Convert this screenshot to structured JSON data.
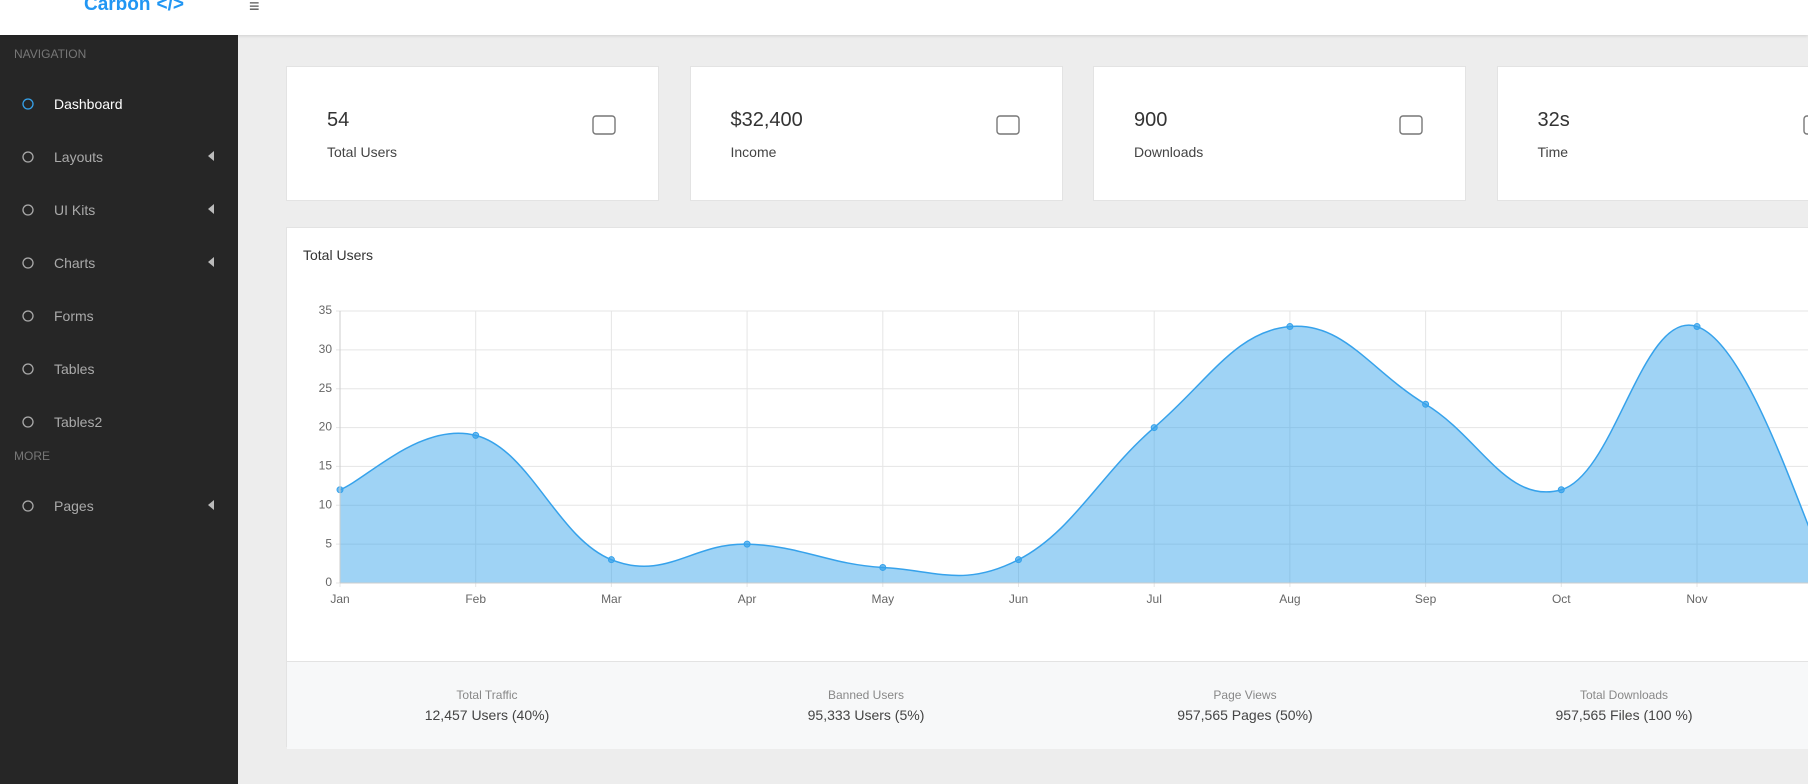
{
  "header": {
    "logo": "Carbon",
    "logo_mark": "</>",
    "menu_icon": "≡"
  },
  "sidebar": {
    "sections": [
      {
        "title": "NAVIGATION",
        "items": [
          {
            "label": "Dashboard",
            "active": true,
            "arrow": false
          },
          {
            "label": "Layouts",
            "arrow": true
          },
          {
            "label": "UI Kits",
            "arrow": true
          },
          {
            "label": "Charts",
            "arrow": true
          },
          {
            "label": "Forms",
            "arrow": false
          },
          {
            "label": "Tables",
            "arrow": false
          },
          {
            "label": "Tables2",
            "arrow": false
          }
        ]
      },
      {
        "title": "MORE",
        "items": [
          {
            "label": "Pages",
            "arrow": true
          }
        ]
      }
    ]
  },
  "stat_cards": [
    {
      "value": "54",
      "label": "Total Users"
    },
    {
      "value": "$32,400",
      "label": "Income"
    },
    {
      "value": "900",
      "label": "Downloads"
    },
    {
      "value": "32s",
      "label": "Time"
    }
  ],
  "chart_data": {
    "type": "area",
    "title": "Total Users",
    "categories": [
      "Jan",
      "Feb",
      "Mar",
      "Apr",
      "May",
      "Jun",
      "Jul",
      "Aug",
      "Sep",
      "Oct",
      "Nov"
    ],
    "values": [
      12,
      19,
      3,
      5,
      2,
      3,
      20,
      33,
      23,
      12,
      33
    ],
    "color": "#36a2eb",
    "ylim": [
      0,
      35
    ],
    "yticks": [
      0,
      5,
      10,
      15,
      20,
      25,
      30,
      35
    ],
    "grid": true
  },
  "footer_stats": [
    {
      "label": "Total Traffic",
      "value": "12,457 Users (40%)"
    },
    {
      "label": "Banned Users",
      "value": "95,333 Users (5%)"
    },
    {
      "label": "Page Views",
      "value": "957,565 Pages (50%)"
    },
    {
      "label": "Total Downloads",
      "value": "957,565 Files (100 %)"
    }
  ]
}
